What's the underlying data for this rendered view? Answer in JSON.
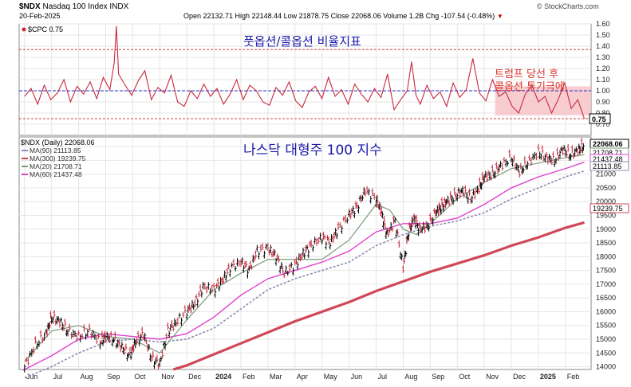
{
  "header": {
    "symbol": "$NDX",
    "name": "Nasdaq 100 Index",
    "exchange": "INDX",
    "date": "20-Feb-2025",
    "ohlc_text": "Open 22132.71  High 22148.44  Low 21878.75  Close 22068.06  Volume 1.2B  Chg -107.54 (-0.48%)",
    "chg_arrow": "▼",
    "copyright": "© StockCharts.com"
  },
  "colors": {
    "cpc": "#c8283c",
    "cpc_shade": "#f6c0c4",
    "price_bar": "#000000",
    "price_up": "#1a8a1a",
    "ma90": "#8c8cb4",
    "ma300": "#d04858",
    "ma20": "#7a9a7a",
    "ma60": "#e040d0",
    "ref_red": "#d04040",
    "ref_blue": "#2030c8",
    "grid": "#e6e6e6"
  },
  "chart_data": [
    {
      "type": "line",
      "panel": "upper",
      "title": "$CPC 0.75",
      "annotation": "풋옵션/콜옵션 비율지표",
      "annotation2_line1": "트럼프 당선 후",
      "annotation2_line2": "콜옵션 투기극에",
      "ylim": [
        0.6,
        1.6
      ],
      "y_ticks": [
        "1.60",
        "1.50",
        "1.40",
        "1.30",
        "1.20",
        "1.10",
        "1.00",
        "0.90",
        "0.80",
        "0.70"
      ],
      "reference_lines": [
        1.37,
        1.0,
        0.75
      ],
      "last_value_label": "0.75",
      "series": [
        {
          "x_months": [
            0.0,
            0.3,
            0.6,
            0.9,
            1.2,
            1.5,
            1.8,
            2.1,
            2.4,
            2.7,
            3.0,
            3.3,
            3.6,
            3.9,
            4.1,
            4.2,
            4.3,
            4.6,
            4.9,
            5.2,
            5.5,
            5.8,
            6.1,
            6.4,
            6.7,
            7.0,
            7.3,
            7.6,
            7.9,
            8.2,
            8.5,
            8.8,
            9.1,
            9.4,
            9.7,
            10.0,
            10.3,
            10.6,
            10.9,
            11.2,
            11.5,
            11.8,
            12.1,
            12.4,
            12.7,
            13.0,
            13.3,
            13.6,
            13.9,
            14.2,
            14.5,
            14.8,
            15.1,
            15.4,
            15.7,
            16.0,
            16.3,
            16.6,
            16.9,
            17.2,
            17.5,
            17.7,
            17.9,
            18.1,
            18.4,
            18.7,
            19.0,
            19.3,
            19.6,
            19.9,
            20.2,
            20.5,
            20.8,
            21.1,
            21.4,
            21.7,
            22.0,
            22.3,
            22.6,
            22.9,
            23.2,
            23.5,
            23.8,
            24.1,
            24.4,
            24.7,
            25.0,
            25.3,
            25.6
          ],
          "values": [
            0.95,
            1.02,
            0.88,
            1.05,
            0.92,
            0.98,
            1.1,
            0.9,
            1.04,
            0.97,
            1.08,
            0.93,
            1.12,
            1.01,
            1.25,
            1.58,
            1.15,
            1.05,
            0.96,
            1.09,
            1.18,
            0.92,
            1.03,
            0.98,
            1.14,
            0.9,
            0.86,
            1.0,
            0.93,
            1.06,
            0.95,
            1.02,
            0.88,
            0.97,
            1.1,
            0.92,
            1.05,
            1.0,
            0.9,
            0.87,
            1.03,
            0.96,
            1.08,
            0.91,
            0.85,
            0.99,
            1.04,
            0.93,
            1.12,
            0.95,
            1.01,
            0.88,
            1.06,
            0.97,
            0.9,
            1.02,
            0.94,
            1.15,
            0.83,
            0.92,
            1.0,
            1.26,
            0.96,
            0.88,
            1.05,
            0.93,
            0.99,
            0.86,
            1.07,
            0.94,
            1.01,
            1.29,
            0.98,
            0.91,
            1.1,
            0.95,
            0.99,
            0.86,
            0.8,
            0.97,
            1.05,
            0.9,
            0.95,
            0.8,
            0.92,
            1.07,
            0.84,
            0.92,
            0.75
          ]
        }
      ]
    },
    {
      "type": "line",
      "panel": "lower",
      "title": "$NDX (Daily) 22068.06",
      "annotation": "나스닥 대형주 100 지수",
      "ylim": [
        13900,
        22350
      ],
      "y_ticks": [
        "22000",
        "21500",
        "21000",
        "20500",
        "20000",
        "19500",
        "19000",
        "18500",
        "18000",
        "17500",
        "17000",
        "16500",
        "16000",
        "15500",
        "15000",
        "14500",
        "14000"
      ],
      "x_tick_labels": [
        "Jun",
        "Jul",
        "Aug",
        "Sep",
        "Oct",
        "Nov",
        "Dec",
        "2024",
        "Feb",
        "Mar",
        "Apr",
        "May",
        "Jun",
        "Jul",
        "Aug",
        "Sep",
        "Oct",
        "Nov",
        "Dec",
        "2025",
        "Feb"
      ],
      "x_tick_months": [
        0,
        1,
        2,
        3,
        4,
        5,
        6,
        7,
        8,
        9,
        10,
        11,
        12,
        13,
        14,
        15,
        16,
        17,
        18,
        19,
        20
      ],
      "right_labels": [
        "22068.06",
        "21708.71",
        "21437.48",
        "21113.85",
        "19239.75"
      ],
      "legend": [
        "MA(90) 21113.85",
        "MA(300) 19239.75",
        "MA(20) 21708.71",
        "MA(60) 21437.48"
      ],
      "price_points": {
        "x_months": [
          0.0,
          0.4,
          0.8,
          1.0,
          1.3,
          1.6,
          2.0,
          2.4,
          2.8,
          3.0,
          3.3,
          3.6,
          3.9,
          4.1,
          4.4,
          4.7,
          5.0,
          5.3,
          5.6,
          6.0,
          6.3,
          6.6,
          7.0,
          7.3,
          7.6,
          8.0,
          8.3,
          8.6,
          9.0,
          9.3,
          9.6,
          10.0,
          10.3,
          10.6,
          11.0,
          11.3,
          11.6,
          12.0,
          12.3,
          12.6,
          13.0,
          13.2,
          13.4,
          13.7,
          14.0,
          14.2,
          14.4,
          14.6,
          14.9,
          15.2,
          15.4,
          15.6,
          15.9,
          16.2,
          16.5,
          16.8,
          17.0,
          17.3,
          17.6,
          18.0,
          18.3,
          18.6,
          19.0,
          19.3,
          19.6,
          19.9,
          20.2,
          20.5,
          20.7
        ],
        "values": [
          14000,
          14800,
          15200,
          15800,
          15650,
          15300,
          15100,
          15300,
          14900,
          15100,
          15000,
          14700,
          14400,
          14900,
          15200,
          14300,
          14100,
          15300,
          15600,
          16000,
          16300,
          16900,
          16800,
          17100,
          17600,
          17800,
          17500,
          18200,
          18300,
          18000,
          17400,
          17700,
          18100,
          18400,
          18700,
          18500,
          19000,
          19500,
          19800,
          20400,
          20100,
          19600,
          18800,
          19300,
          17600,
          18900,
          19400,
          19000,
          19100,
          19600,
          19800,
          20000,
          20200,
          20400,
          20100,
          20500,
          20900,
          21000,
          21300,
          21600,
          21100,
          21400,
          21800,
          21600,
          21500,
          21900,
          21700,
          21900,
          22068
        ]
      },
      "ma20_points": {
        "x_months": [
          0.0,
          1.0,
          2.0,
          3.0,
          4.0,
          5.0,
          6.0,
          7.0,
          8.0,
          9.0,
          10.0,
          11.0,
          12.0,
          13.0,
          13.5,
          14.0,
          14.5,
          15.0,
          16.0,
          17.0,
          18.0,
          19.0,
          20.0,
          20.7
        ],
        "values": [
          14200,
          15300,
          15500,
          15100,
          15000,
          14500,
          15700,
          16800,
          17400,
          17900,
          17900,
          17900,
          18600,
          19900,
          19700,
          19000,
          18800,
          19200,
          20100,
          20700,
          21200,
          21400,
          21600,
          21708.71
        ]
      },
      "ma60_points": {
        "x_months": [
          0.0,
          1.0,
          2.0,
          3.0,
          4.0,
          5.0,
          6.0,
          7.0,
          8.0,
          9.0,
          10.0,
          11.0,
          12.0,
          13.0,
          14.0,
          15.0,
          16.0,
          17.0,
          18.0,
          19.0,
          20.0,
          20.7
        ],
        "values": [
          13900,
          14400,
          15000,
          15200,
          15100,
          15000,
          15200,
          15800,
          16600,
          17200,
          17500,
          17800,
          18200,
          18900,
          19200,
          19200,
          19400,
          19900,
          20500,
          20900,
          21200,
          21437.48
        ]
      },
      "ma90_points": {
        "x_months": [
          0.0,
          1.0,
          2.0,
          3.0,
          4.0,
          5.0,
          6.0,
          7.0,
          8.0,
          9.0,
          10.0,
          11.0,
          12.0,
          13.0,
          14.0,
          15.0,
          16.0,
          17.0,
          18.0,
          19.0,
          20.0,
          20.7
        ],
        "values": [
          13600,
          14000,
          14500,
          14900,
          15000,
          14900,
          15000,
          15400,
          16100,
          16800,
          17200,
          17500,
          17800,
          18400,
          18800,
          19100,
          19300,
          19600,
          20100,
          20500,
          20900,
          21113.85
        ]
      },
      "ma300_points": {
        "x_months": [
          5.5,
          6.0,
          7.0,
          8.0,
          9.0,
          10.0,
          11.0,
          12.0,
          13.0,
          14.0,
          15.0,
          16.0,
          17.0,
          18.0,
          19.0,
          20.0,
          20.7
        ],
        "values": [
          13900,
          14050,
          14450,
          14850,
          15250,
          15650,
          16000,
          16350,
          16750,
          17100,
          17450,
          17750,
          18050,
          18400,
          18700,
          19050,
          19239.75
        ]
      }
    }
  ]
}
